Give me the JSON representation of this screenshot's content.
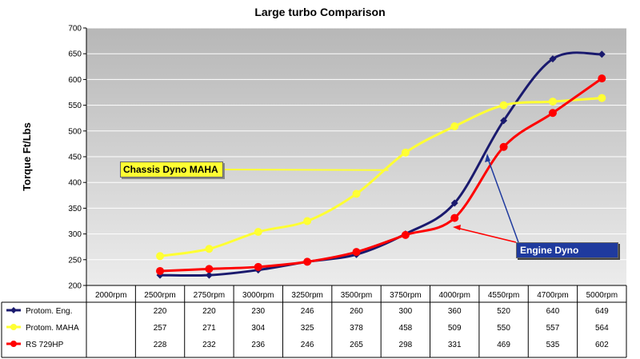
{
  "chart_data": {
    "type": "line",
    "title": "Large turbo Comparison",
    "ylabel": "Torque Ft/Lbs",
    "xlabel": "",
    "ylim": [
      200,
      700
    ],
    "yticks": [
      "200",
      "250",
      "300",
      "350",
      "400",
      "450",
      "500",
      "550",
      "600",
      "650",
      "700"
    ],
    "categories": [
      "2000rpm",
      "2500rpm",
      "2750rpm",
      "3000rpm",
      "3250rpm",
      "3500rpm",
      "3750rpm",
      "4000rpm",
      "4550rpm",
      "4700rpm",
      "5000rpm"
    ],
    "series": [
      {
        "name": "Protom. Eng.",
        "color": "#1a1a6e",
        "marker": "diamond",
        "values": [
          null,
          220,
          220,
          230,
          246,
          260,
          300,
          360,
          520,
          640,
          649
        ],
        "labels": [
          "",
          "220",
          "220",
          "230",
          "246",
          "260",
          "300",
          "360",
          "520",
          "640",
          "649"
        ]
      },
      {
        "name": "Protom. MAHA",
        "color": "#ffff33",
        "marker": "circle",
        "values": [
          null,
          257,
          271,
          304,
          325,
          378,
          458,
          509,
          550,
          557,
          564
        ],
        "labels": [
          "",
          "257",
          "271",
          "304",
          "325",
          "378",
          "458",
          "509",
          "550",
          "557",
          "564"
        ]
      },
      {
        "name": "RS 729HP",
        "color": "#ff0000",
        "marker": "circle",
        "values": [
          null,
          228,
          232,
          236,
          246,
          265,
          298,
          331,
          469,
          535,
          602
        ],
        "labels": [
          "",
          "228",
          "232",
          "236",
          "246",
          "265",
          "298",
          "331",
          "469",
          "535",
          "602"
        ]
      }
    ],
    "grid": true,
    "legend": "table-below",
    "plot_background": "#c8c8c8",
    "annotations": [
      {
        "text": "Chassis Dyno MAHA"
      },
      {
        "text": "Engine Dyno"
      }
    ]
  }
}
